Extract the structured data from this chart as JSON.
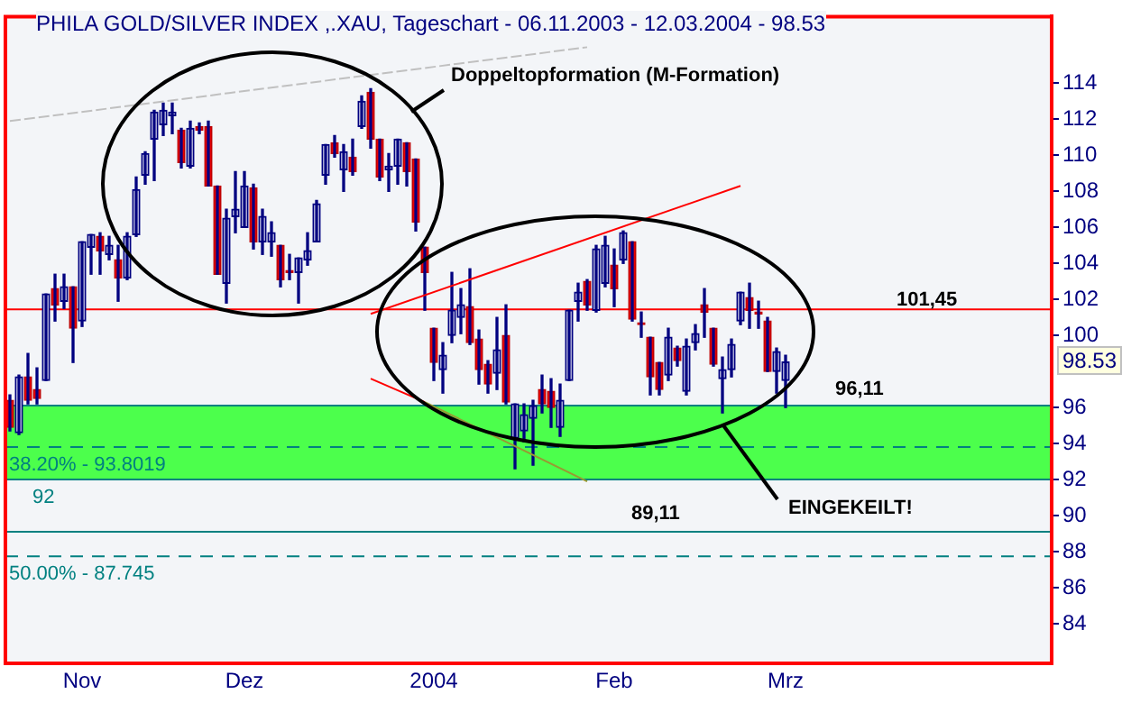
{
  "chart_data": {
    "type": "candlestick",
    "title": "PHILA GOLD/SILVER INDEX ,.XAU, Tageschart - 06.11.2003 - 12.03.2004 - 98.53",
    "categories": [
      null,
      null,
      null,
      null,
      null,
      null,
      null,
      null,
      "Nov",
      null,
      null,
      null,
      null,
      null,
      null,
      null,
      null,
      null,
      null,
      null,
      null,
      null,
      null,
      null,
      null,
      null,
      "Dez",
      null,
      null,
      null,
      null,
      null,
      null,
      null,
      null,
      null,
      null,
      null,
      null,
      null,
      null,
      null,
      null,
      null,
      null,
      null,
      null,
      "2004",
      null,
      null,
      null,
      null,
      null,
      null,
      null,
      null,
      null,
      null,
      null,
      null,
      null,
      null,
      null,
      null,
      null,
      null,
      null,
      "Feb",
      null,
      null,
      null,
      null,
      null,
      null,
      null,
      null,
      null,
      null,
      null,
      null,
      null,
      null,
      null,
      null,
      null,
      null,
      "Mrz",
      null,
      null,
      null,
      null,
      null,
      null,
      null,
      null,
      null,
      null,
      null,
      null,
      null,
      null,
      null,
      null,
      null,
      null,
      null,
      null,
      null,
      null,
      null,
      null,
      null,
      null,
      null,
      null,
      null
    ],
    "ohlc": [
      [
        96.4,
        96.7,
        94.7,
        94.9
      ],
      [
        94.6,
        97.8,
        94.5,
        97.7
      ],
      [
        97.7,
        99.0,
        96.2,
        96.4
      ],
      [
        97.0,
        98.2,
        96.2,
        96.5
      ],
      [
        97.5,
        102.3,
        97.5,
        102.3
      ],
      [
        102.6,
        103.4,
        100.8,
        101.7
      ],
      [
        101.9,
        103.4,
        101.5,
        102.7
      ],
      [
        102.7,
        102.7,
        98.5,
        100.4
      ],
      [
        100.8,
        105.2,
        100.5,
        105.2
      ],
      [
        104.9,
        105.6,
        103.4,
        105.6
      ],
      [
        105.5,
        105.7,
        103.4,
        104.7
      ],
      [
        104.5,
        105.5,
        104.2,
        105.0
      ],
      [
        104.2,
        105.0,
        101.9,
        103.2
      ],
      [
        103.2,
        105.7,
        103.1,
        105.5
      ],
      [
        105.6,
        108.8,
        105.5,
        108.1
      ],
      [
        108.9,
        110.2,
        108.4,
        110.1
      ],
      [
        110.9,
        112.5,
        108.6,
        112.4
      ],
      [
        111.7,
        112.9,
        111.1,
        112.5
      ],
      [
        112.2,
        112.9,
        111.2,
        112.4
      ],
      [
        111.4,
        111.5,
        109.3,
        109.6
      ],
      [
        109.4,
        111.9,
        109.3,
        111.5
      ],
      [
        111.6,
        111.8,
        111.2,
        111.4
      ],
      [
        111.6,
        111.9,
        108.3,
        108.3
      ],
      [
        108.3,
        108.3,
        103.4,
        103.4
      ],
      [
        102.9,
        107.0,
        101.8,
        106.5
      ],
      [
        106.6,
        109.1,
        105.7,
        107.0
      ],
      [
        106.0,
        109.1,
        106.0,
        108.3
      ],
      [
        108.2,
        108.4,
        104.8,
        105.2
      ],
      [
        105.2,
        107.0,
        104.5,
        106.6
      ],
      [
        105.2,
        106.3,
        104.4,
        105.7
      ],
      [
        105.0,
        105.0,
        102.7,
        103.1
      ],
      [
        103.6,
        104.5,
        103.1,
        103.5
      ],
      [
        103.5,
        104.3,
        101.8,
        104.3
      ],
      [
        104.2,
        105.7,
        103.9,
        104.7
      ],
      [
        105.2,
        107.5,
        105.2,
        107.3
      ],
      [
        108.9,
        110.6,
        108.4,
        110.6
      ],
      [
        110.7,
        111.1,
        109.9,
        110.1
      ],
      [
        109.2,
        110.6,
        108.0,
        110.2
      ],
      [
        109.9,
        110.9,
        108.9,
        109.1
      ],
      [
        111.6,
        113.3,
        111.5,
        113.0
      ],
      [
        113.5,
        113.7,
        110.4,
        110.9
      ],
      [
        110.9,
        110.9,
        108.6,
        108.8
      ],
      [
        109.2,
        110.1,
        108.0,
        109.4
      ],
      [
        109.4,
        110.9,
        108.4,
        110.9
      ],
      [
        110.7,
        110.7,
        108.3,
        109.1
      ],
      [
        109.8,
        109.8,
        105.8,
        106.3
      ],
      [
        104.9,
        104.9,
        101.4,
        103.5
      ],
      [
        100.4,
        100.4,
        97.5,
        98.5
      ],
      [
        98.1,
        99.6,
        96.8,
        98.9
      ],
      [
        100.0,
        103.5,
        99.6,
        101.4
      ],
      [
        101.0,
        102.6,
        100.1,
        101.7
      ],
      [
        101.6,
        103.7,
        99.5,
        99.6
      ],
      [
        99.8,
        100.3,
        97.3,
        98.1
      ],
      [
        98.4,
        98.6,
        96.8,
        97.3
      ],
      [
        97.9,
        101.0,
        97.0,
        99.2
      ],
      [
        100.0,
        101.7,
        96.2,
        96.3
      ],
      [
        94.3,
        96.2,
        92.6,
        96.2
      ],
      [
        94.7,
        96.2,
        94.1,
        95.6
      ],
      [
        95.4,
        96.4,
        92.8,
        96.1
      ],
      [
        97.0,
        97.8,
        95.7,
        96.2
      ],
      [
        96.9,
        97.6,
        94.9,
        96.0
      ],
      [
        94.9,
        97.3,
        94.4,
        96.4
      ],
      [
        97.5,
        101.4,
        97.5,
        101.4
      ],
      [
        101.9,
        102.9,
        100.8,
        102.4
      ],
      [
        103.0,
        103.1,
        101.4,
        101.7
      ],
      [
        101.4,
        105.0,
        101.3,
        104.8
      ],
      [
        102.9,
        105.5,
        102.7,
        105.0
      ],
      [
        103.9,
        104.8,
        101.6,
        102.6
      ],
      [
        104.2,
        105.8,
        104.0,
        105.7
      ],
      [
        105.2,
        105.2,
        100.8,
        100.9
      ],
      [
        100.7,
        101.3,
        99.9,
        100.6
      ],
      [
        99.9,
        99.9,
        96.7,
        97.7
      ],
      [
        98.5,
        98.5,
        96.7,
        97.0
      ],
      [
        97.8,
        100.4,
        97.5,
        99.9
      ],
      [
        99.3,
        99.4,
        98.3,
        98.6
      ],
      [
        96.9,
        99.8,
        96.7,
        99.4
      ],
      [
        99.6,
        100.6,
        99.2,
        100.1
      ],
      [
        101.7,
        102.6,
        99.9,
        101.3
      ],
      [
        100.4,
        100.4,
        98.3,
        98.4
      ],
      [
        97.6,
        98.8,
        95.7,
        98.1
      ],
      [
        98.1,
        99.8,
        97.7,
        99.5
      ],
      [
        100.8,
        102.4,
        100.6,
        102.4
      ],
      [
        102.1,
        102.9,
        100.4,
        101.4
      ],
      [
        101.3,
        101.9,
        100.4,
        101.2
      ],
      [
        100.8,
        101.0,
        98.0,
        98.0
      ],
      [
        98.0,
        99.3,
        96.8,
        99.1
      ],
      [
        97.5,
        98.9,
        96.0,
        98.53
      ],
      null,
      null,
      null,
      null,
      null,
      null,
      null,
      null,
      null,
      null,
      null,
      null,
      null,
      null,
      null,
      null,
      null,
      null,
      null,
      null,
      null,
      null,
      null,
      null,
      null,
      null,
      null,
      null,
      null
    ],
    "series": [
      {
        "type": "line",
        "color": "#c0c0c0",
        "line_style": "dashed",
        "values": [
          111.9,
          null,
          null,
          null,
          null,
          null,
          null,
          null,
          null,
          null,
          null,
          null,
          null,
          null,
          null,
          null,
          null,
          null,
          null,
          null,
          null,
          null,
          null,
          null,
          null,
          null,
          null,
          null,
          null,
          null,
          null,
          null,
          null,
          null,
          null,
          null,
          null,
          null,
          null,
          null,
          null,
          null,
          null,
          null,
          null,
          null,
          null,
          null,
          null,
          null,
          null,
          null,
          null,
          null,
          null,
          null,
          null,
          null,
          null,
          null,
          null,
          null,
          null,
          null,
          116.0,
          null,
          null,
          null,
          null,
          null,
          null,
          null,
          null,
          null,
          null,
          null,
          null,
          null,
          null,
          null,
          null,
          null,
          null,
          null,
          null,
          null,
          null,
          null,
          null,
          null,
          null,
          null,
          null,
          null,
          null,
          null,
          null,
          null,
          null,
          null,
          null,
          null,
          null,
          null,
          null,
          null,
          null,
          null,
          null,
          null,
          null,
          null,
          null,
          null,
          null,
          null
        ]
      },
      {
        "type": "line",
        "color": "#ff0000",
        "line_style": "solid",
        "values": [
          null,
          null,
          null,
          null,
          null,
          null,
          null,
          null,
          null,
          null,
          null,
          null,
          null,
          null,
          null,
          null,
          null,
          null,
          null,
          null,
          null,
          null,
          null,
          null,
          null,
          null,
          null,
          null,
          null,
          null,
          null,
          null,
          null,
          null,
          null,
          null,
          null,
          null,
          null,
          null,
          101.2,
          null,
          null,
          null,
          null,
          null,
          null,
          null,
          null,
          null,
          null,
          null,
          null,
          null,
          null,
          null,
          null,
          null,
          null,
          null,
          null,
          null,
          null,
          null,
          null,
          null,
          null,
          null,
          null,
          null,
          null,
          null,
          null,
          null,
          null,
          null,
          null,
          null,
          null,
          null,
          null,
          108.3,
          null,
          null,
          null,
          null,
          null,
          null,
          null,
          null,
          null,
          null,
          null,
          null,
          null,
          null,
          null,
          null,
          null,
          null,
          null,
          null,
          null,
          null,
          null,
          null,
          null,
          null,
          null,
          null,
          null,
          null,
          null,
          null,
          null,
          null
        ]
      },
      {
        "type": "line",
        "color": "#ff0000",
        "line_style": "solid",
        "values": [
          null,
          null,
          null,
          null,
          null,
          null,
          null,
          null,
          null,
          null,
          null,
          null,
          null,
          null,
          null,
          null,
          null,
          null,
          null,
          null,
          null,
          null,
          null,
          null,
          null,
          null,
          null,
          null,
          null,
          null,
          null,
          null,
          null,
          null,
          null,
          null,
          null,
          null,
          null,
          null,
          97.6,
          null,
          null,
          null,
          null,
          null,
          96.3,
          null,
          null,
          null,
          null,
          null,
          null,
          null,
          null,
          null,
          null,
          null,
          null,
          null,
          null,
          null,
          null,
          null,
          null,
          null,
          null,
          null,
          null,
          null,
          null,
          null,
          null,
          null,
          null,
          null,
          null,
          null,
          null,
          null,
          null,
          null,
          null,
          null,
          null,
          null,
          null,
          null,
          null,
          null,
          null,
          null,
          null,
          null,
          null,
          null,
          null,
          null,
          null,
          null,
          null,
          null,
          null,
          null,
          null,
          null,
          null,
          null,
          null,
          null,
          null,
          null,
          null,
          null,
          null,
          null
        ]
      },
      {
        "type": "line",
        "color": "#999933",
        "line_style": "solid",
        "values": [
          null,
          null,
          null,
          null,
          null,
          null,
          null,
          null,
          null,
          null,
          null,
          null,
          null,
          null,
          null,
          null,
          null,
          null,
          null,
          null,
          null,
          null,
          null,
          null,
          null,
          null,
          null,
          null,
          null,
          null,
          null,
          null,
          null,
          null,
          null,
          null,
          null,
          null,
          null,
          null,
          null,
          null,
          null,
          null,
          null,
          null,
          96.3,
          null,
          null,
          null,
          null,
          null,
          null,
          null,
          null,
          null,
          null,
          null,
          null,
          null,
          null,
          null,
          null,
          null,
          91.9,
          null,
          null,
          null,
          null,
          null,
          null,
          null,
          null,
          null,
          null,
          null,
          null,
          null,
          null,
          null,
          null,
          null,
          null,
          null,
          null,
          null,
          null,
          null,
          null,
          null,
          null,
          null,
          null,
          null,
          null,
          null,
          null,
          null,
          null,
          null,
          null,
          null,
          null,
          null,
          null,
          null,
          null,
          null,
          null,
          null,
          null,
          null,
          null,
          null,
          null,
          null
        ]
      }
    ],
    "ylim": [
      81.8,
      117.7
    ],
    "yticks": [
      84,
      86,
      88,
      90,
      92,
      94,
      96,
      100,
      102,
      104,
      106,
      108,
      110,
      112,
      114
    ],
    "bands": [
      {
        "axis": "y",
        "from": 92,
        "to": 96.11,
        "color": "#4cff4c"
      }
    ],
    "ref_lines": [
      {
        "axis": "y",
        "value": 101.45,
        "label": "101,45",
        "color": "#ff0000",
        "line_style": "solid"
      },
      {
        "axis": "y",
        "value": 96.11,
        "label": "96,11",
        "color": "#008080",
        "line_style": "solid"
      },
      {
        "axis": "y",
        "value": 93.8019,
        "color": "#008080",
        "line_style": "dashed"
      },
      {
        "axis": "y",
        "value": 92,
        "label": "92",
        "color": "#008080",
        "line_style": "solid"
      },
      {
        "axis": "y",
        "value": 89.11,
        "label": "89,11",
        "color": "#008080",
        "line_style": "solid"
      },
      {
        "axis": "y",
        "value": 87.745,
        "color": "#008080",
        "line_style": "dashed"
      }
    ],
    "annotations": [
      "Doppeltopformation (M-Formation)",
      "EINGEKEILT!",
      "98.53",
      {
        "text": "38.20% - 93.8019",
        "y": 93.8019
      },
      {
        "text": "50.00% - 87.745",
        "y": 87.745
      }
    ]
  }
}
